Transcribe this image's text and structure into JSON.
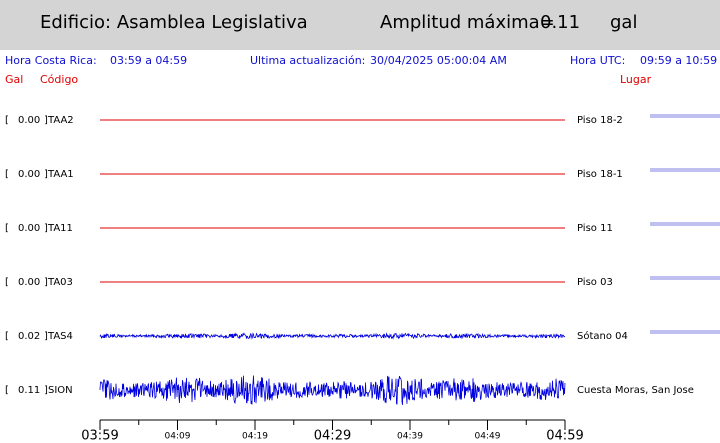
{
  "header": {
    "building": "Edificio: Asamblea Legislativa",
    "amp_label": "Amplitud máxima=",
    "amp_value": "0.11",
    "amp_unit": "gal"
  },
  "info": {
    "local_label": "Hora Costa Rica:",
    "local_range": "03:59 a 04:59",
    "update_label": "Ultima actualización:",
    "update_value": "30/04/2025 05:00:04 AM",
    "utc_label": "Hora UTC:",
    "utc_range": "09:59 a 10:59"
  },
  "columns": {
    "gal": "Gal",
    "code": "Código",
    "place": "Lugar"
  },
  "bracket": {
    "open": "[",
    "close": "]"
  },
  "stations": [
    {
      "gal": "0.00",
      "code": "TAA2",
      "place": "Piso 18-2"
    },
    {
      "gal": "0.00",
      "code": "TAA1",
      "place": "Piso 18-1"
    },
    {
      "gal": "0.00",
      "code": "TA11",
      "place": "Piso 11"
    },
    {
      "gal": "0.00",
      "code": "TA03",
      "place": "Piso 03"
    },
    {
      "gal": "0.02",
      "code": "TAS4",
      "place": "Sótano 04"
    },
    {
      "gal": "0.11",
      "code": "SION",
      "place": "Cuesta Moras, San Jose"
    }
  ],
  "time_axis": {
    "major": [
      "03:59",
      "04:29",
      "04:59"
    ],
    "minor": [
      "04:09",
      "04:19",
      "04:39",
      "04:49"
    ]
  }
}
